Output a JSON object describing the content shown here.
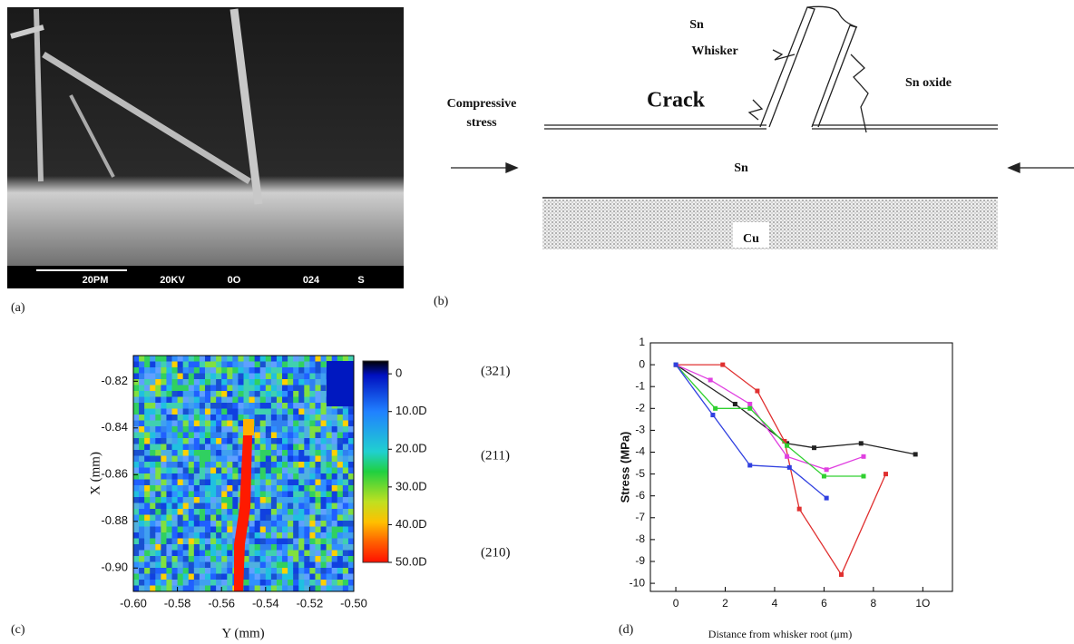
{
  "panel_a": {
    "caption": "(a)",
    "scale_bar_labels": [
      "20PM",
      "20KV",
      "0O",
      "024",
      "S"
    ]
  },
  "panel_b": {
    "caption": "(b)",
    "labels": {
      "sn_whisker": [
        "Sn",
        "Whisker"
      ],
      "crack": "Crack",
      "compressive_stress": [
        "Compressive",
        "stress"
      ],
      "sn_oxide": "Sn oxide",
      "sn": "Sn",
      "cu": "Cu"
    }
  },
  "chart_data": [
    {
      "type": "heatmap",
      "caption": "(c)",
      "xlabel": "Y (mm)",
      "ylabel": "X (mm)",
      "xlim": [
        -0.6,
        -0.5
      ],
      "xticks": [
        {
          "value": -0.6,
          "label": "-0.60"
        },
        -0.58,
        -0.56,
        -0.54,
        -0.52,
        {
          "value": -0.5,
          "label": "-0.50"
        }
      ],
      "ylim": [
        -0.809,
        -0.91
      ],
      "yticks": [
        -0.82,
        -0.84,
        -0.86,
        -0.88,
        {
          "value": -0.9,
          "label": "-0.90"
        }
      ],
      "colorbar": {
        "clim": [
          -3.4,
          50
        ],
        "ticks": [
          0,
          {
            "value": 10,
            "label": "10.0D"
          },
          {
            "value": 20,
            "label": "20.0D"
          },
          {
            "value": 30,
            "label": "30.0D"
          },
          {
            "value": 40,
            "label": "40.0D"
          },
          {
            "value": 50,
            "label": "50.0D"
          }
        ]
      },
      "annotations": [
        "(321)",
        "(211)",
        "(210)"
      ]
    },
    {
      "type": "line",
      "caption": "(d)",
      "xlabel": "Distance from whisker root (μm)",
      "ylabel": "Stress (MPa)",
      "xlim": [
        -1.03,
        11.2
      ],
      "xticks": [
        0,
        2,
        4,
        6,
        8,
        {
          "value": 10,
          "label": "1O"
        }
      ],
      "ylim": [
        -10.37,
        1
      ],
      "yticks": [
        1,
        0,
        -1,
        -2,
        -3,
        -4,
        -5,
        -6,
        -7,
        -8,
        -9,
        -10
      ],
      "series": [
        {
          "color": "#222222",
          "x": [
            0,
            2.4,
            4.5,
            5.6,
            7.5,
            9.7
          ],
          "values": [
            0,
            -1.8,
            -3.6,
            -3.8,
            -3.6,
            -4.1
          ]
        },
        {
          "color": "#e03030",
          "x": [
            0,
            1.9,
            3.3,
            4.4,
            5.0,
            6.7,
            8.5
          ],
          "values": [
            0,
            0,
            -1.2,
            -3.5,
            -6.6,
            -9.6,
            -5.0
          ]
        },
        {
          "color": "#e040e0",
          "x": [
            0,
            1.4,
            3.0,
            4.5,
            6.1,
            7.6
          ],
          "values": [
            0,
            -0.7,
            -1.8,
            -4.2,
            -4.8,
            -4.2
          ]
        },
        {
          "color": "#30d030",
          "x": [
            0,
            1.6,
            3.0,
            4.5,
            6.0,
            7.6
          ],
          "values": [
            0,
            -2.0,
            -2.0,
            -3.7,
            -5.1,
            -5.1
          ]
        },
        {
          "color": "#3040e0",
          "x": [
            0,
            1.5,
            3.0,
            4.6,
            6.1
          ],
          "values": [
            0,
            -2.3,
            -4.6,
            -4.7,
            -6.1
          ]
        }
      ]
    }
  ]
}
